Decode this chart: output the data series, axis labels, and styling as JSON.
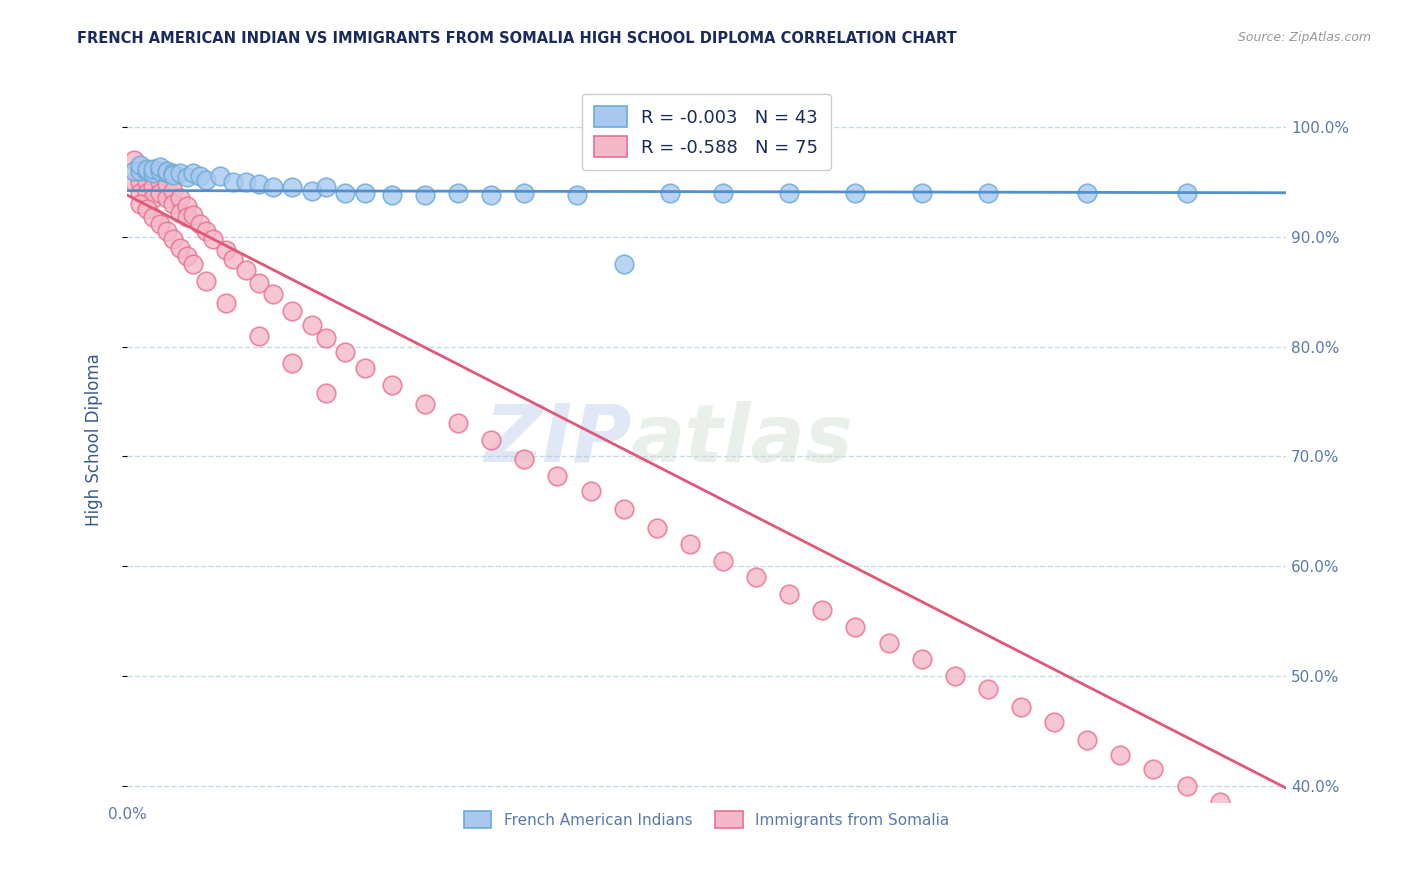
{
  "title": "FRENCH AMERICAN INDIAN VS IMMIGRANTS FROM SOMALIA HIGH SCHOOL DIPLOMA CORRELATION CHART",
  "source": "Source: ZipAtlas.com",
  "ylabel": "High School Diploma",
  "watermark_zip": "ZIP",
  "watermark_atlas": "atlas",
  "blue_R": "-0.003",
  "blue_N": "43",
  "pink_R": "-0.588",
  "pink_N": "75",
  "legend_blue": "French American Indians",
  "legend_pink": "Immigrants from Somalia",
  "xlim": [
    0.0,
    0.175
  ],
  "ylim": [
    0.385,
    1.045
  ],
  "yticks": [
    0.4,
    0.5,
    0.6,
    0.7,
    0.8,
    0.9,
    1.0
  ],
  "ytick_labels_right": [
    "40.0%",
    "50.0%",
    "60.0%",
    "70.0%",
    "80.0%",
    "90.0%",
    "100.0%"
  ],
  "blue_color": "#a8c8f0",
  "blue_edge_color": "#6aaad4",
  "pink_color": "#f5b8c8",
  "pink_edge_color": "#e87090",
  "blue_line_color": "#5090d0",
  "pink_line_color": "#e05878",
  "grid_color": "#c8d8ec",
  "title_color": "#1a2a5a",
  "axis_label_color": "#3a5a8a",
  "tick_color": "#5a7aaa",
  "background_color": "#ffffff",
  "blue_x": [
    0.001,
    0.002,
    0.002,
    0.003,
    0.003,
    0.004,
    0.004,
    0.005,
    0.005,
    0.006,
    0.006,
    0.007,
    0.007,
    0.008,
    0.009,
    0.01,
    0.011,
    0.012,
    0.014,
    0.016,
    0.018,
    0.02,
    0.022,
    0.025,
    0.028,
    0.03,
    0.033,
    0.036,
    0.04,
    0.045,
    0.05,
    0.055,
    0.06,
    0.068,
    0.075,
    0.082,
    0.09,
    0.1,
    0.11,
    0.12,
    0.13,
    0.145,
    0.16
  ],
  "blue_y": [
    0.96,
    0.96,
    0.965,
    0.96,
    0.962,
    0.958,
    0.962,
    0.96,
    0.963,
    0.958,
    0.96,
    0.958,
    0.956,
    0.958,
    0.954,
    0.958,
    0.955,
    0.952,
    0.955,
    0.95,
    0.95,
    0.948,
    0.945,
    0.945,
    0.942,
    0.945,
    0.94,
    0.94,
    0.938,
    0.938,
    0.94,
    0.938,
    0.94,
    0.938,
    0.875,
    0.94,
    0.94,
    0.94,
    0.94,
    0.94,
    0.94,
    0.94,
    0.94
  ],
  "pink_x": [
    0.001,
    0.001,
    0.002,
    0.002,
    0.002,
    0.003,
    0.003,
    0.003,
    0.004,
    0.004,
    0.004,
    0.005,
    0.005,
    0.006,
    0.006,
    0.007,
    0.007,
    0.008,
    0.008,
    0.009,
    0.009,
    0.01,
    0.011,
    0.012,
    0.013,
    0.015,
    0.016,
    0.018,
    0.02,
    0.022,
    0.025,
    0.028,
    0.03,
    0.033,
    0.036,
    0.04,
    0.045,
    0.05,
    0.055,
    0.06,
    0.065,
    0.07,
    0.075,
    0.08,
    0.085,
    0.09,
    0.095,
    0.1,
    0.105,
    0.11,
    0.115,
    0.12,
    0.125,
    0.13,
    0.135,
    0.14,
    0.145,
    0.15,
    0.155,
    0.16,
    0.165,
    0.002,
    0.003,
    0.004,
    0.005,
    0.006,
    0.007,
    0.008,
    0.009,
    0.01,
    0.012,
    0.015,
    0.02,
    0.025,
    0.03
  ],
  "pink_y": [
    0.97,
    0.95,
    0.96,
    0.95,
    0.94,
    0.96,
    0.95,
    0.94,
    0.955,
    0.945,
    0.935,
    0.95,
    0.94,
    0.948,
    0.935,
    0.942,
    0.93,
    0.935,
    0.922,
    0.928,
    0.918,
    0.92,
    0.912,
    0.905,
    0.898,
    0.888,
    0.88,
    0.87,
    0.858,
    0.848,
    0.832,
    0.82,
    0.808,
    0.795,
    0.78,
    0.765,
    0.748,
    0.73,
    0.715,
    0.698,
    0.682,
    0.668,
    0.652,
    0.635,
    0.62,
    0.605,
    0.59,
    0.575,
    0.56,
    0.545,
    0.53,
    0.515,
    0.5,
    0.488,
    0.472,
    0.458,
    0.442,
    0.428,
    0.415,
    0.4,
    0.385,
    0.93,
    0.925,
    0.918,
    0.912,
    0.905,
    0.898,
    0.89,
    0.882,
    0.875,
    0.86,
    0.84,
    0.81,
    0.785,
    0.758
  ],
  "blue_trend_x": [
    0.0,
    0.175
  ],
  "blue_trend_y": [
    0.942,
    0.94
  ],
  "pink_trend_x": [
    0.0,
    0.175
  ],
  "pink_trend_y": [
    0.938,
    0.398
  ]
}
